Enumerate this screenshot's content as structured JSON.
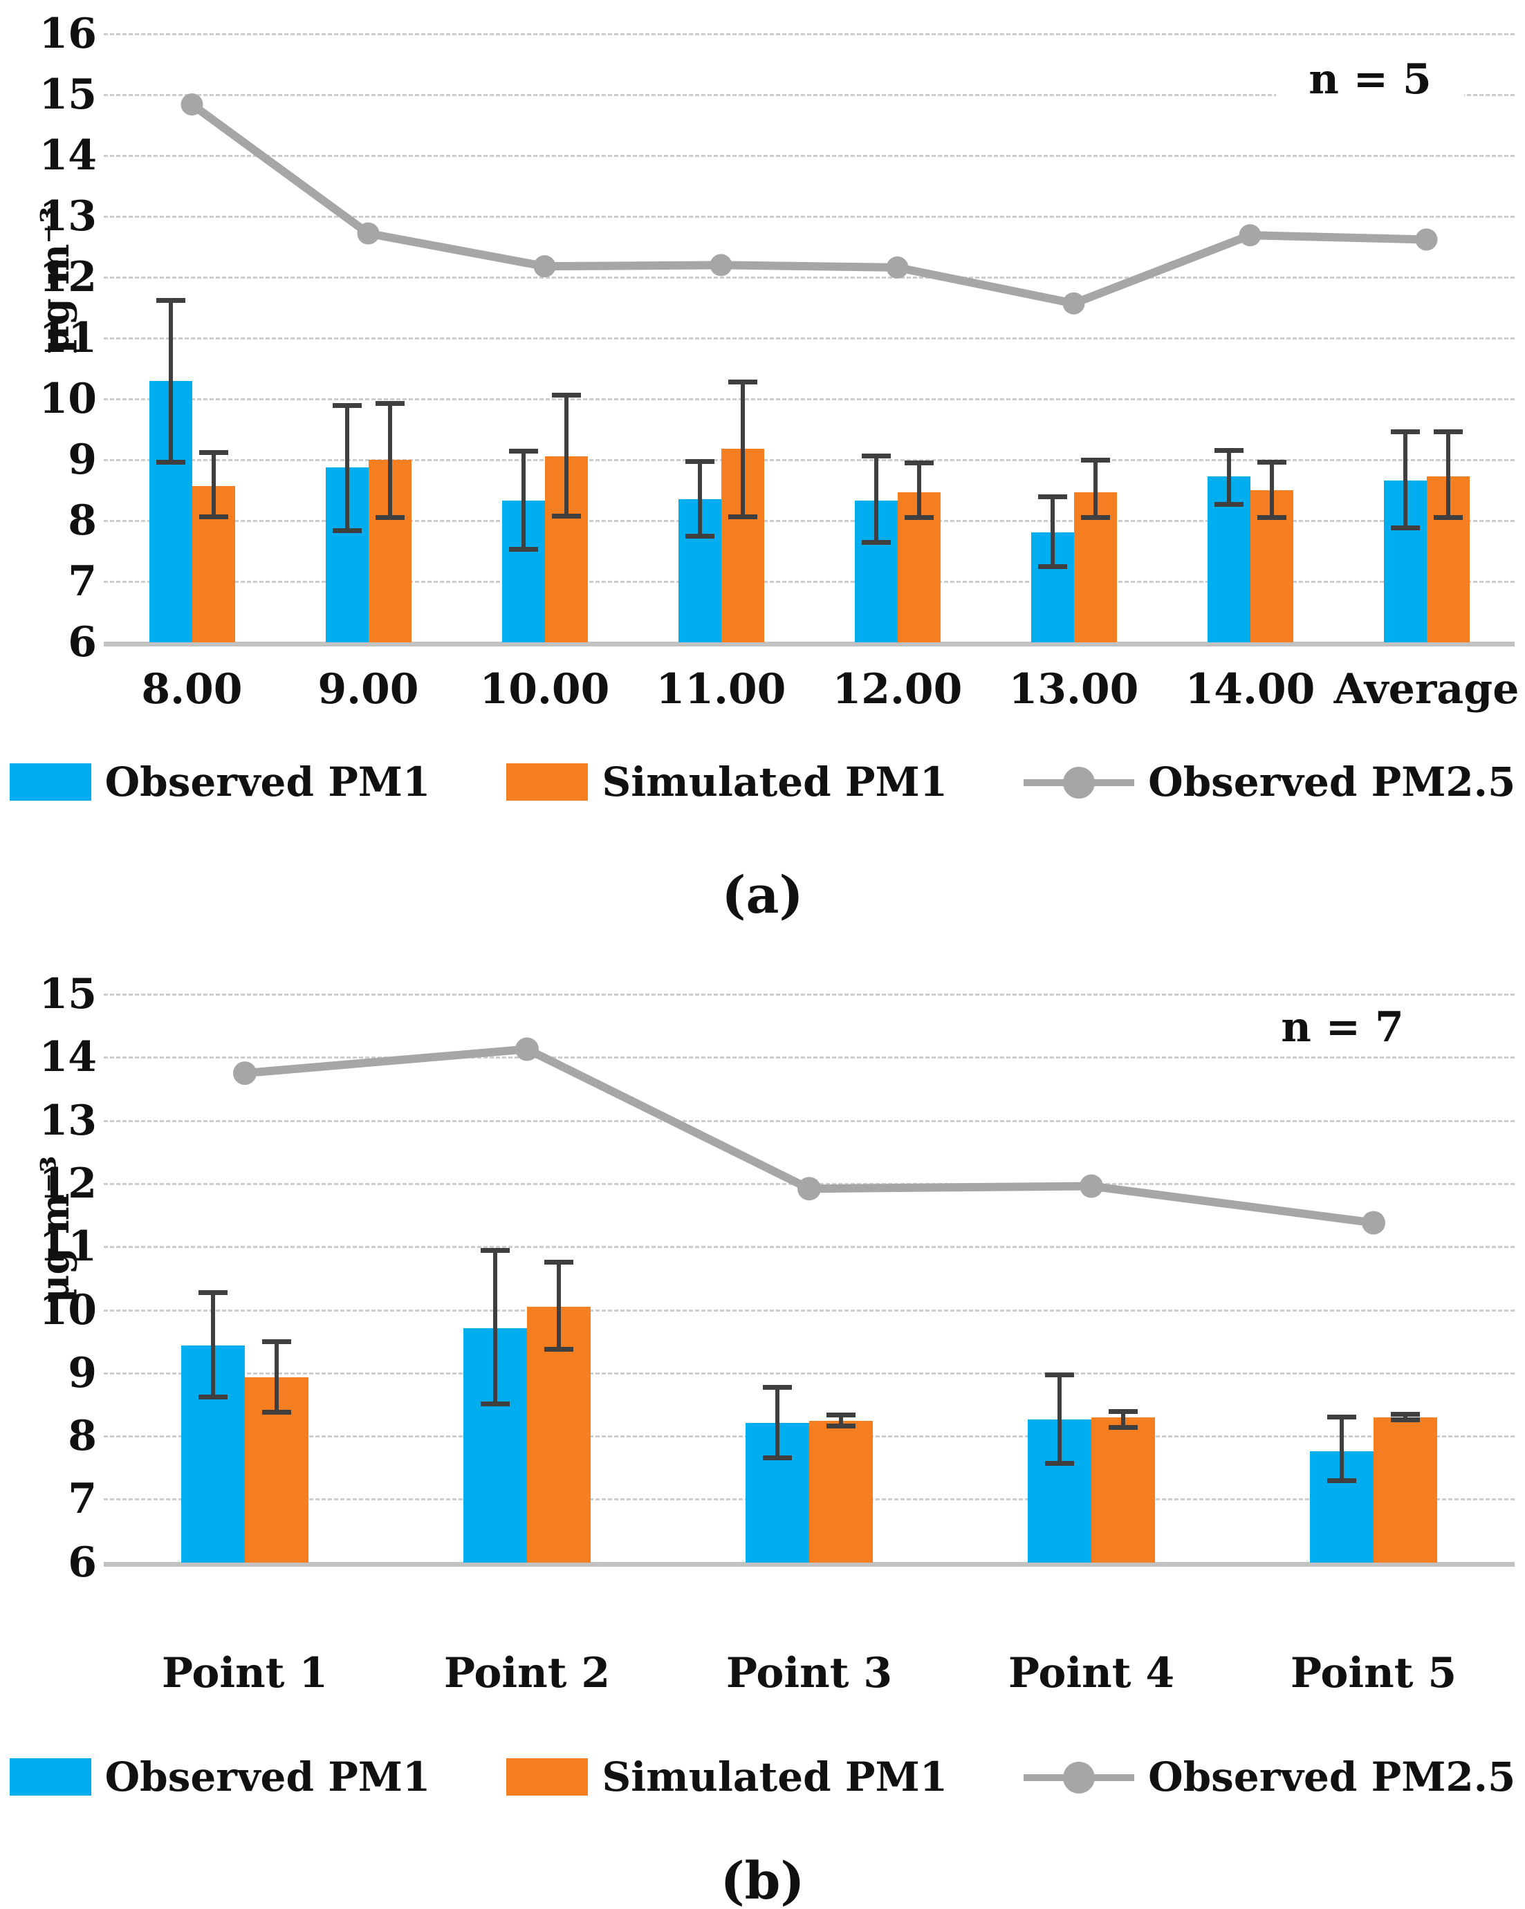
{
  "style": {
    "observed_pm1_color": "#00AEEF",
    "simulated_pm1_color": "#F57E20",
    "observed_pm25_color": "#A6A6A6",
    "error_bar_color": "#3F3F3F",
    "gridline_color": "#CDCDCD",
    "baseline_color": "#C2C2C2",
    "background": "#FFFFFF"
  },
  "chart_data": [
    {
      "id": "a",
      "type": "bar+line",
      "caption": "(a)",
      "annotation": "n = 5",
      "ylabel": "µg m⁻³",
      "xlabel": "",
      "ylim": [
        6,
        16
      ],
      "yticks": [
        6,
        7,
        8,
        9,
        10,
        11,
        12,
        13,
        14,
        15,
        16
      ],
      "grid": true,
      "legend_position": "bottom",
      "categories": [
        "8.00",
        "9.00",
        "10.00",
        "11.00",
        "12.00",
        "13.00",
        "14.00",
        "Average"
      ],
      "series": [
        {
          "name": "Observed PM1",
          "type": "bar",
          "color": "#00AEEF",
          "values": [
            10.29,
            8.88,
            8.33,
            8.35,
            8.33,
            7.81,
            8.73,
            8.66
          ],
          "err_low": [
            8.96,
            7.83,
            7.52,
            7.74,
            7.64,
            7.24,
            8.26,
            7.88
          ],
          "err_high": [
            11.62,
            9.9,
            9.15,
            8.98,
            9.07,
            8.4,
            9.16,
            9.47
          ]
        },
        {
          "name": "Simulated PM1",
          "type": "bar",
          "color": "#F57E20",
          "values": [
            8.57,
            9.0,
            9.06,
            9.18,
            8.47,
            8.47,
            8.5,
            8.73
          ],
          "err_low": [
            8.06,
            8.05,
            8.07,
            8.06,
            8.05,
            8.05,
            8.05,
            8.05
          ],
          "err_high": [
            9.13,
            9.93,
            10.07,
            10.28,
            8.95,
            9.0,
            8.97,
            9.47
          ]
        },
        {
          "name": "Observed PM2.5",
          "type": "line",
          "color": "#A6A6A6",
          "values": [
            14.84,
            12.72,
            12.18,
            12.2,
            12.16,
            11.57,
            12.69,
            12.62
          ]
        }
      ]
    },
    {
      "id": "b",
      "type": "bar+line",
      "caption": "(b)",
      "annotation": "n = 7",
      "ylabel": "µg m⁻³",
      "xlabel": "",
      "ylim": [
        6,
        15
      ],
      "yticks": [
        6,
        7,
        8,
        9,
        10,
        11,
        12,
        13,
        14,
        15
      ],
      "grid": true,
      "legend_position": "bottom",
      "categories": [
        "Point 1",
        "Point 2",
        "Point 3",
        "Point 4",
        "Point 5"
      ],
      "series": [
        {
          "name": "Observed PM1",
          "type": "bar",
          "color": "#00AEEF",
          "values": [
            9.44,
            9.71,
            8.21,
            8.26,
            7.76
          ],
          "err_low": [
            8.61,
            8.51,
            7.65,
            7.56,
            7.29
          ],
          "err_high": [
            10.28,
            10.95,
            8.78,
            8.98,
            8.31
          ]
        },
        {
          "name": "Simulated PM1",
          "type": "bar",
          "color": "#F57E20",
          "values": [
            8.93,
            10.05,
            8.24,
            8.3,
            8.3
          ],
          "err_low": [
            8.37,
            9.37,
            8.15,
            8.13,
            8.25
          ],
          "err_high": [
            9.5,
            10.76,
            8.34,
            8.4,
            8.35
          ]
        },
        {
          "name": "Observed PM2.5",
          "type": "line",
          "color": "#A6A6A6",
          "values": [
            13.75,
            14.13,
            11.92,
            11.96,
            11.38
          ]
        }
      ]
    }
  ]
}
